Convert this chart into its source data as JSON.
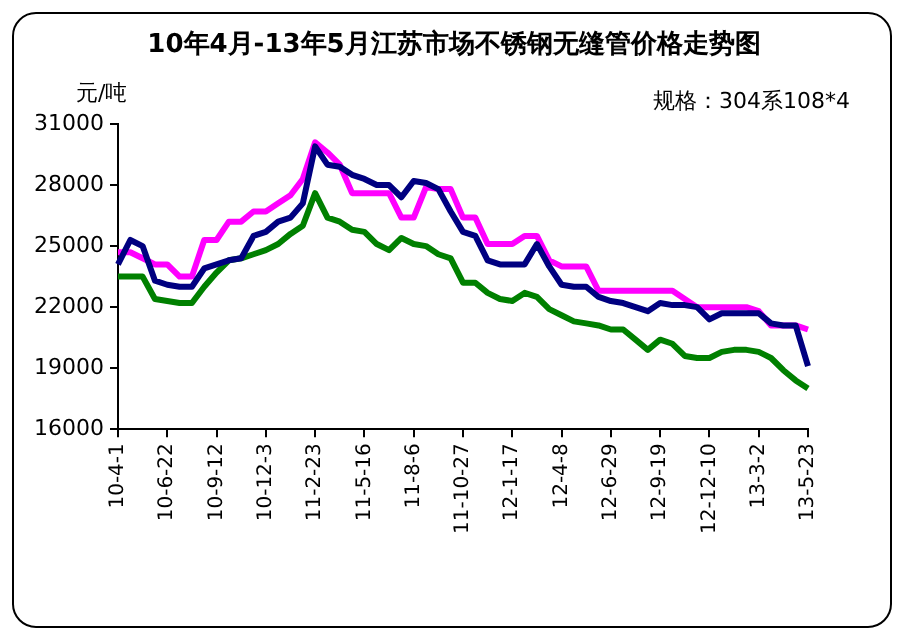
{
  "chart_data": {
    "type": "line",
    "title": "10年4月-13年5月江苏市场不锈钢无缝管价格走势图",
    "ylabel": "元/吨",
    "annotations": [
      "规格：304系108*4"
    ],
    "categories": [
      "10-4-1",
      null,
      null,
      null,
      "10-6-22",
      null,
      null,
      null,
      "10-9-12",
      null,
      null,
      null,
      "10-12-3",
      null,
      null,
      null,
      "11-2-23",
      null,
      null,
      null,
      "11-5-16",
      null,
      null,
      null,
      "11-8-6",
      null,
      null,
      null,
      "11-10-27",
      null,
      null,
      null,
      "12-1-17",
      null,
      null,
      null,
      "12-4-8",
      null,
      null,
      null,
      "12-6-29",
      null,
      null,
      null,
      "12-9-19",
      null,
      null,
      null,
      "12-12-10",
      null,
      null,
      null,
      "13-3-2",
      null,
      null,
      null,
      "13-5-23"
    ],
    "series": [
      {
        "color": "#000080",
        "values": [
          24100,
          25300,
          25000,
          23300,
          23100,
          23000,
          23000,
          23900,
          24100,
          24300,
          24400,
          25500,
          25700,
          26200,
          26400,
          27100,
          29900,
          29000,
          28900,
          28500,
          28300,
          28000,
          28000,
          27400,
          28200,
          28100,
          27800,
          26700,
          25700,
          25500,
          24300,
          24100,
          24100,
          24100,
          25100,
          24000,
          23100,
          23000,
          23000,
          22500,
          22300,
          22200,
          22000,
          21800,
          22200,
          22100,
          22100,
          22000,
          21400,
          21700,
          21700,
          21700,
          21700,
          21200,
          21100,
          21100,
          19100
        ]
      },
      {
        "color": "#ff00ff",
        "values": [
          24700,
          24700,
          24400,
          24100,
          24100,
          23500,
          23500,
          25300,
          25300,
          26200,
          26200,
          26700,
          26700,
          27100,
          27500,
          28300,
          30100,
          29600,
          29000,
          27600,
          27600,
          27600,
          27600,
          26400,
          26400,
          27900,
          27800,
          27800,
          26400,
          26400,
          25100,
          25100,
          25100,
          25500,
          25500,
          24300,
          24000,
          24000,
          24000,
          22800,
          22800,
          22800,
          22800,
          22800,
          22800,
          22800,
          22400,
          22000,
          22000,
          22000,
          22000,
          22000,
          21800,
          21100,
          21100,
          21100,
          20900
        ]
      },
      {
        "color": "#008000",
        "values": [
          23500,
          23500,
          23500,
          22400,
          22300,
          22200,
          22200,
          23000,
          23700,
          24300,
          24400,
          24600,
          24800,
          25100,
          25600,
          26000,
          27600,
          26400,
          26200,
          25800,
          25700,
          25100,
          24800,
          25400,
          25100,
          25000,
          24600,
          24400,
          23200,
          23200,
          22700,
          22400,
          22300,
          22700,
          22500,
          21900,
          21600,
          21300,
          21200,
          21100,
          20900,
          20900,
          20400,
          19900,
          20400,
          20200,
          19600,
          19500,
          19500,
          19800,
          19900,
          19900,
          19800,
          19500,
          18900,
          18400,
          18000
        ]
      }
    ],
    "ylim": [
      16000,
      31000
    ],
    "yticks": [
      16000,
      19000,
      22000,
      25000,
      28000,
      31000
    ],
    "grid": false,
    "legend": false,
    "marker": "none",
    "line_style": "solid"
  }
}
